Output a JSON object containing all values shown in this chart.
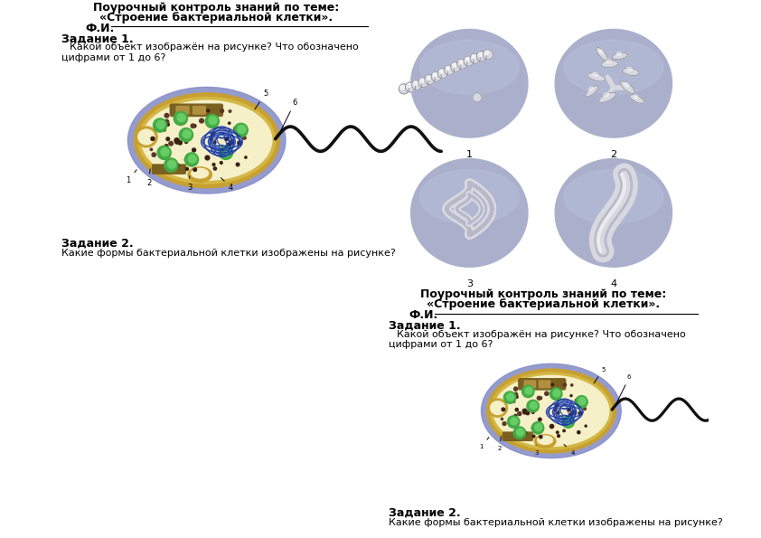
{
  "title1": "Поурочный контроль знаний по теме:",
  "title2": "«Строение бактериальной клетки».",
  "fi_label": "Ф.И.",
  "zadanie1_label": "Задание 1.",
  "zadanie1_text1": "Какой объект изображён на рисунке? Что обозначено",
  "zadanie1_text2": "цифрами от 1 до 6?",
  "zadanie2_label": "Задание 2.",
  "zadanie2_text": "Какие формы бактериальной клетки изображены на рисунке?",
  "bg_color": "#ffffff",
  "circle_bg": "#aab0cc",
  "cell_outer": "#8890c8",
  "cell_wall": "#c8a030",
  "cell_inner": "#d4b845",
  "cell_cytoplasm": "#f5f0c8",
  "cell_green": "#44aa44",
  "cell_green_light": "#66cc66",
  "cell_dna": "#1a3aaa",
  "cell_bar": "#7a6020",
  "cell_brown_dot": "#3a2010",
  "flagellum_color": "#111111"
}
